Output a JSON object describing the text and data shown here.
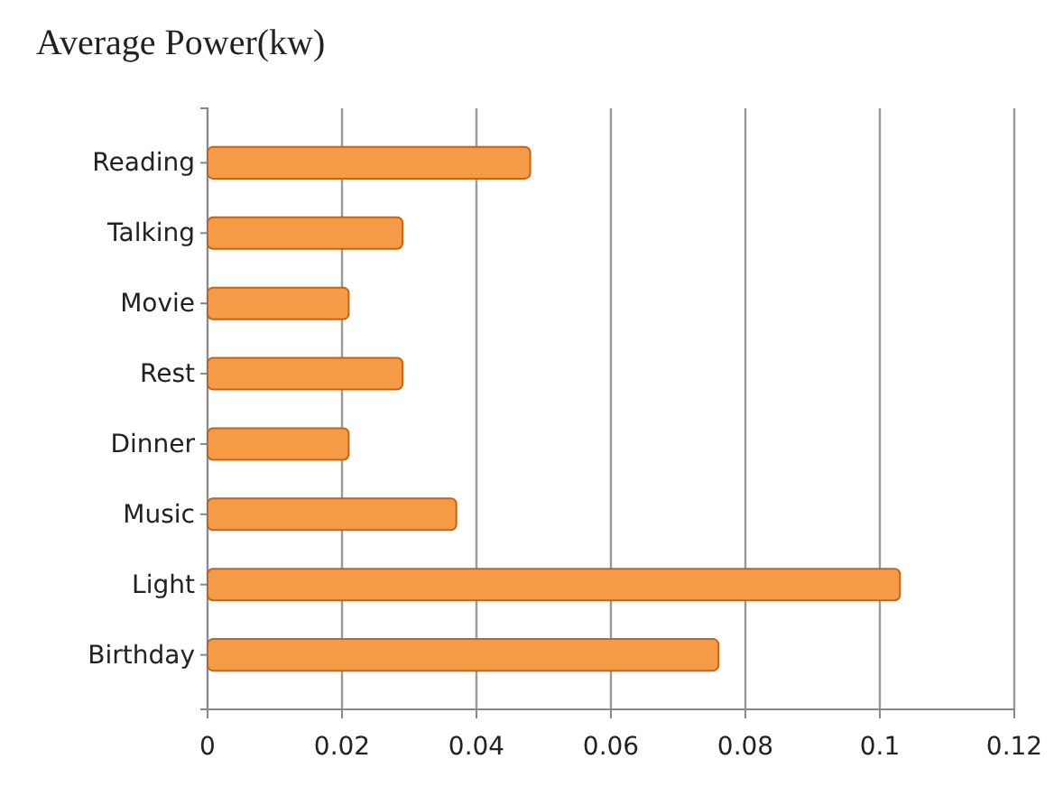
{
  "chart_data": {
    "type": "bar",
    "orientation": "horizontal",
    "title": "Average Power(kw)",
    "categories": [
      "Reading",
      "Talking",
      "Movie",
      "Rest",
      "Dinner",
      "Music",
      "Light",
      "Birthday"
    ],
    "values": [
      0.048,
      0.029,
      0.021,
      0.029,
      0.021,
      0.037,
      0.103,
      0.076
    ],
    "color": "#f59a45",
    "xlim": [
      0,
      0.12
    ],
    "xticks": [
      0,
      0.02,
      0.04,
      0.06,
      0.08,
      {
        "value": 0.1,
        "label": "0.1"
      },
      0.12
    ],
    "grid": "x"
  }
}
